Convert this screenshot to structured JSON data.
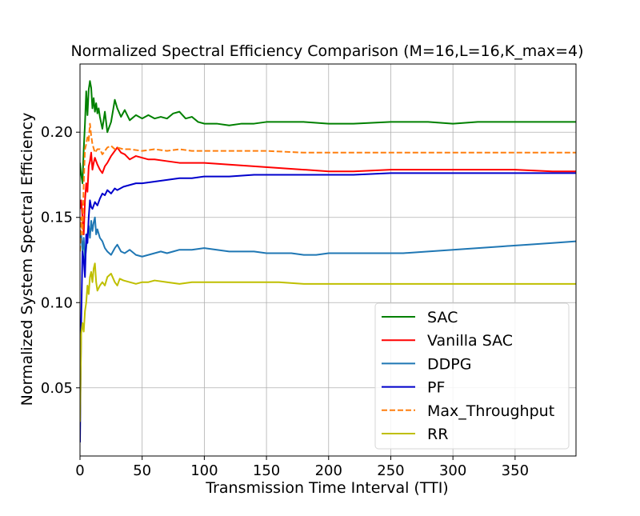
{
  "chart_data": {
    "type": "line",
    "title": "Normalized Spectral Efficiency Comparison (M=16,L=16,K_max=4)",
    "xlabel": "Transmission Time Interval (TTI)",
    "ylabel": "Normalized System Spectral Efficiency",
    "xlim": [
      0,
      399
    ],
    "ylim": [
      0.01,
      0.24
    ],
    "xticks": [
      0,
      50,
      100,
      150,
      200,
      250,
      300,
      350
    ],
    "yticks": [
      0.05,
      0.1,
      0.15,
      0.2
    ],
    "xtick_labels": [
      "0",
      "50",
      "100",
      "150",
      "200",
      "250",
      "300",
      "350"
    ],
    "ytick_labels": [
      "0.05",
      "0.10",
      "0.15",
      "0.20"
    ],
    "grid": true,
    "legend_position": "lower-right",
    "series": [
      {
        "name": "SAC",
        "color": "#008000",
        "dash": "solid",
        "x": [
          0,
          1,
          2,
          3,
          4,
          5,
          6,
          7,
          8,
          9,
          10,
          11,
          12,
          13,
          14,
          15,
          16,
          18,
          20,
          22,
          25,
          28,
          30,
          33,
          36,
          40,
          45,
          50,
          55,
          60,
          65,
          70,
          75,
          80,
          85,
          90,
          95,
          100,
          110,
          120,
          130,
          140,
          150,
          160,
          170,
          180,
          200,
          220,
          250,
          280,
          300,
          320,
          350,
          380,
          399
        ],
        "y": [
          0.182,
          0.175,
          0.17,
          0.19,
          0.205,
          0.224,
          0.21,
          0.225,
          0.23,
          0.226,
          0.214,
          0.22,
          0.212,
          0.217,
          0.211,
          0.214,
          0.209,
          0.202,
          0.212,
          0.2,
          0.206,
          0.219,
          0.214,
          0.209,
          0.213,
          0.207,
          0.21,
          0.208,
          0.21,
          0.208,
          0.209,
          0.208,
          0.211,
          0.212,
          0.208,
          0.209,
          0.206,
          0.205,
          0.205,
          0.204,
          0.205,
          0.205,
          0.206,
          0.206,
          0.206,
          0.206,
          0.205,
          0.205,
          0.206,
          0.206,
          0.205,
          0.206,
          0.206,
          0.206,
          0.206
        ]
      },
      {
        "name": "Vanilla SAC",
        "color": "#ff0000",
        "dash": "solid",
        "x": [
          0,
          1,
          2,
          3,
          4,
          5,
          6,
          7,
          8,
          9,
          10,
          11,
          12,
          14,
          16,
          18,
          20,
          22,
          25,
          28,
          30,
          33,
          36,
          40,
          45,
          50,
          55,
          60,
          70,
          80,
          90,
          100,
          120,
          140,
          160,
          180,
          200,
          220,
          250,
          280,
          300,
          320,
          350,
          380,
          399
        ],
        "y": [
          0.155,
          0.16,
          0.15,
          0.14,
          0.16,
          0.17,
          0.165,
          0.18,
          0.183,
          0.188,
          0.178,
          0.182,
          0.185,
          0.181,
          0.178,
          0.176,
          0.18,
          0.182,
          0.186,
          0.189,
          0.191,
          0.188,
          0.187,
          0.184,
          0.186,
          0.185,
          0.184,
          0.184,
          0.183,
          0.182,
          0.182,
          0.182,
          0.181,
          0.18,
          0.179,
          0.178,
          0.177,
          0.177,
          0.178,
          0.178,
          0.178,
          0.178,
          0.178,
          0.177,
          0.177
        ]
      },
      {
        "name": "DDPG",
        "color": "#1f77b4",
        "dash": "solid",
        "x": [
          0,
          1,
          2,
          3,
          4,
          5,
          6,
          7,
          8,
          9,
          10,
          11,
          12,
          13,
          14,
          16,
          18,
          20,
          22,
          25,
          28,
          30,
          33,
          36,
          40,
          45,
          50,
          55,
          60,
          65,
          70,
          75,
          80,
          90,
          100,
          110,
          120,
          130,
          140,
          150,
          160,
          170,
          180,
          190,
          200,
          220,
          240,
          260,
          280,
          300,
          320,
          340,
          360,
          380,
          399
        ],
        "y": [
          0.135,
          0.14,
          0.13,
          0.138,
          0.125,
          0.132,
          0.14,
          0.145,
          0.138,
          0.148,
          0.142,
          0.147,
          0.15,
          0.14,
          0.143,
          0.138,
          0.136,
          0.132,
          0.13,
          0.128,
          0.132,
          0.134,
          0.13,
          0.129,
          0.131,
          0.128,
          0.127,
          0.128,
          0.129,
          0.13,
          0.129,
          0.13,
          0.131,
          0.131,
          0.132,
          0.131,
          0.13,
          0.13,
          0.13,
          0.129,
          0.129,
          0.129,
          0.128,
          0.128,
          0.129,
          0.129,
          0.129,
          0.129,
          0.13,
          0.131,
          0.132,
          0.133,
          0.134,
          0.135,
          0.136
        ]
      },
      {
        "name": "PF",
        "color": "#0000cc",
        "dash": "solid",
        "x": [
          0,
          1,
          2,
          3,
          4,
          5,
          6,
          7,
          8,
          9,
          10,
          12,
          14,
          16,
          18,
          20,
          22,
          25,
          28,
          30,
          35,
          40,
          45,
          50,
          60,
          70,
          80,
          90,
          100,
          120,
          140,
          160,
          180,
          200,
          220,
          250,
          280,
          300,
          320,
          350,
          380,
          399
        ],
        "y": [
          0.018,
          0.09,
          0.13,
          0.125,
          0.115,
          0.14,
          0.135,
          0.15,
          0.16,
          0.156,
          0.155,
          0.159,
          0.157,
          0.161,
          0.164,
          0.163,
          0.166,
          0.164,
          0.167,
          0.166,
          0.168,
          0.169,
          0.17,
          0.17,
          0.171,
          0.172,
          0.173,
          0.173,
          0.174,
          0.174,
          0.175,
          0.175,
          0.175,
          0.175,
          0.175,
          0.176,
          0.176,
          0.176,
          0.176,
          0.176,
          0.176,
          0.176
        ]
      },
      {
        "name": "Max_Throughput",
        "color": "#ff7f0e",
        "dash": "dashed",
        "x": [
          0,
          1,
          2,
          3,
          4,
          5,
          6,
          7,
          8,
          9,
          10,
          12,
          14,
          16,
          18,
          20,
          22,
          25,
          28,
          30,
          35,
          40,
          50,
          60,
          70,
          80,
          90,
          100,
          120,
          150,
          180,
          200,
          250,
          300,
          350,
          399
        ],
        "y": [
          0.13,
          0.15,
          0.14,
          0.17,
          0.19,
          0.193,
          0.197,
          0.195,
          0.205,
          0.198,
          0.193,
          0.188,
          0.19,
          0.19,
          0.187,
          0.189,
          0.191,
          0.192,
          0.19,
          0.191,
          0.19,
          0.19,
          0.189,
          0.19,
          0.189,
          0.19,
          0.189,
          0.189,
          0.189,
          0.189,
          0.188,
          0.188,
          0.188,
          0.188,
          0.188,
          0.188
        ]
      },
      {
        "name": "RR",
        "color": "#bfbf00",
        "dash": "solid",
        "x": [
          0,
          1,
          2,
          3,
          4,
          5,
          6,
          7,
          8,
          9,
          10,
          11,
          12,
          13,
          14,
          16,
          18,
          20,
          22,
          25,
          28,
          30,
          32,
          35,
          40,
          45,
          50,
          55,
          60,
          70,
          80,
          90,
          100,
          120,
          140,
          160,
          180,
          200,
          250,
          300,
          350,
          399
        ],
        "y": [
          0.03,
          0.082,
          0.088,
          0.083,
          0.095,
          0.1,
          0.11,
          0.105,
          0.115,
          0.118,
          0.112,
          0.12,
          0.123,
          0.112,
          0.107,
          0.11,
          0.112,
          0.11,
          0.115,
          0.117,
          0.112,
          0.11,
          0.114,
          0.113,
          0.112,
          0.111,
          0.112,
          0.112,
          0.113,
          0.112,
          0.111,
          0.112,
          0.112,
          0.112,
          0.112,
          0.112,
          0.111,
          0.111,
          0.111,
          0.111,
          0.111,
          0.111
        ]
      }
    ]
  }
}
